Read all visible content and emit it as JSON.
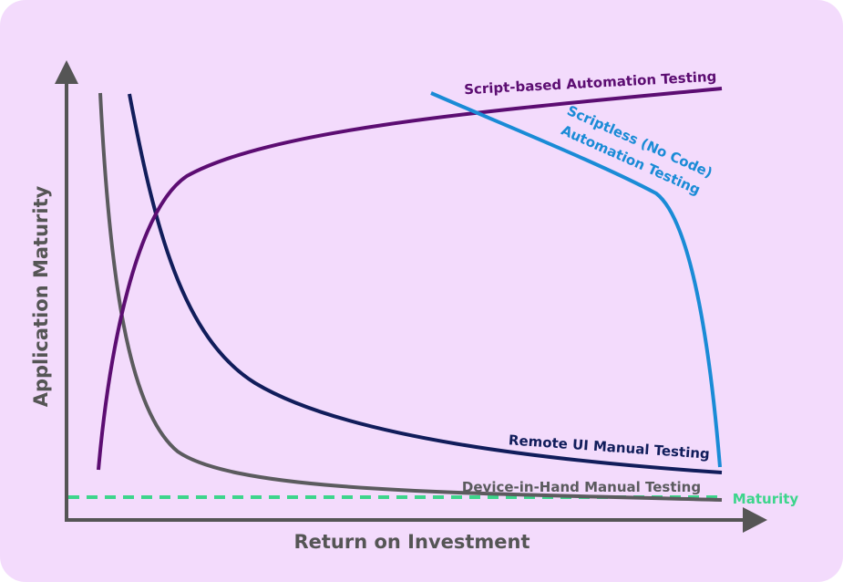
{
  "y_axis_label": "Application Maturity",
  "x_axis_label": "Return on Investment",
  "curves": [
    {
      "label": "Script-based Automation Testing"
    },
    {
      "label_lines": [
        "Scriptless (No Code)",
        "Automation Testing"
      ]
    },
    {
      "label": "Remote UI Manual Testing"
    },
    {
      "label": "Device-in-Hand Manual Testing"
    },
    {
      "label": "Maturity"
    }
  ]
}
